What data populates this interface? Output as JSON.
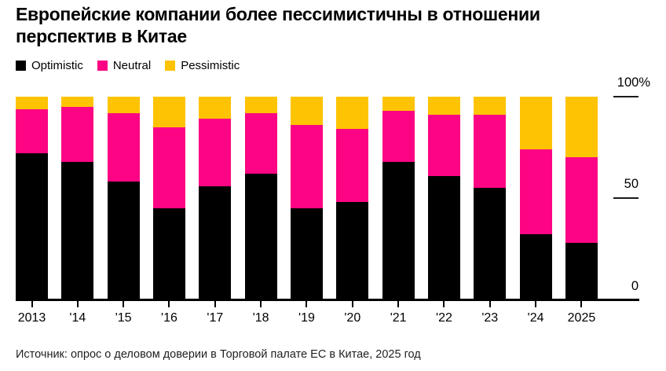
{
  "title": {
    "line1": "Европейские компании более пессимистичны в отношении",
    "line2": "перспектив в Китае"
  },
  "source": "Источник: опрос о деловом доверии в Торговой палате ЕС в Китае, 2025 год",
  "y_axis": {
    "labels": [
      {
        "text": "100%",
        "value": 100
      },
      {
        "text": "50",
        "value": 50
      },
      {
        "text": "0",
        "value": 0
      }
    ]
  },
  "colors": {
    "optimistic": "#000000",
    "neutral": "#FC0483",
    "pessimistic": "#FEC302",
    "axis": "#000000",
    "background": "#FFFFFF"
  },
  "chart_data": {
    "type": "bar",
    "stacked": true,
    "unit": "%",
    "title": "Европейские компании более пессимистичны в отношении перспектив в Китае",
    "categories": [
      "2013",
      "'14",
      "'15",
      "'16",
      "'17",
      "'18",
      "'19",
      "'20",
      "'21",
      "'22",
      "'23",
      "'24",
      "2025"
    ],
    "series": [
      {
        "name": "Optimistic",
        "color": "#000000",
        "values": [
          72,
          68,
          58,
          45,
          56,
          62,
          45,
          48,
          68,
          61,
          55,
          32,
          28
        ]
      },
      {
        "name": "Neutral",
        "color": "#FC0483",
        "values": [
          22,
          27,
          34,
          40,
          33,
          30,
          41,
          36,
          25,
          30,
          36,
          42,
          42
        ]
      },
      {
        "name": "Pessimistic",
        "color": "#FEC302",
        "values": [
          6,
          5,
          8,
          15,
          11,
          8,
          14,
          16,
          7,
          9,
          9,
          26,
          30
        ]
      }
    ],
    "xlabel": "",
    "ylabel": "",
    "ylim": [
      0,
      100
    ],
    "grid": false,
    "legend_position": "top-left",
    "axis_labels_side": "right"
  }
}
